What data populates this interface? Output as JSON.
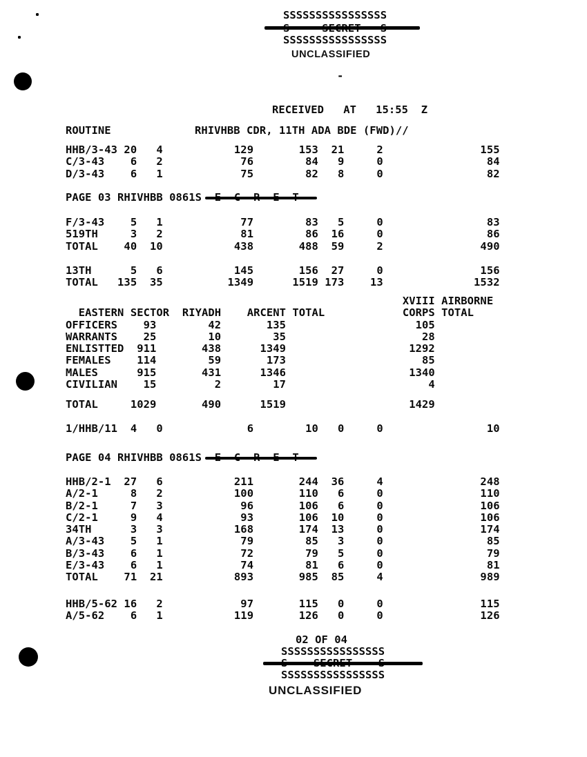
{
  "banner_top": {
    "s_line": "SSSSSSSSSSSSSSSS",
    "secret_line": "S     SECRET   S",
    "s_line2": "SSSSSSSSSSSSSSSS",
    "unclassified": "UNCLASSIFIED",
    "dash": "-"
  },
  "received_line": "RECEIVED   AT   15:55  Z",
  "routine": {
    "label": "ROUTINE",
    "address": "RHIVHBB CDR, 11TH ADA BDE (FWD)//"
  },
  "unit_tables": {
    "block1": [
      {
        "label": "HHB/3-43",
        "values": [
          20,
          4,
          129,
          153,
          21,
          2,
          155
        ]
      },
      {
        "label": "C/3-43",
        "values": [
          6,
          2,
          76,
          84,
          9,
          0,
          84
        ]
      },
      {
        "label": "D/3-43",
        "values": [
          6,
          1,
          75,
          82,
          8,
          0,
          82
        ]
      }
    ],
    "block2": [
      {
        "label": "F/3-43",
        "values": [
          5,
          1,
          77,
          83,
          5,
          0,
          83
        ]
      },
      {
        "label": "519TH",
        "values": [
          3,
          2,
          81,
          86,
          16,
          0,
          86
        ]
      },
      {
        "label": "TOTAL",
        "values": [
          40,
          10,
          438,
          488,
          59,
          2,
          490
        ]
      }
    ],
    "block3": [
      {
        "label": "13TH",
        "values": [
          5,
          6,
          145,
          156,
          27,
          0,
          156
        ]
      },
      {
        "label": "TOTAL",
        "values": [
          135,
          35,
          1349,
          1519,
          173,
          13,
          1532
        ]
      }
    ],
    "block4": [
      {
        "label": "HHB/2-1",
        "values": [
          27,
          6,
          211,
          244,
          36,
          4,
          248
        ]
      },
      {
        "label": "A/2-1",
        "values": [
          8,
          2,
          100,
          110,
          6,
          0,
          110
        ]
      },
      {
        "label": "B/2-1",
        "values": [
          7,
          3,
          96,
          106,
          6,
          0,
          106
        ]
      },
      {
        "label": "C/2-1",
        "values": [
          9,
          4,
          93,
          106,
          10,
          0,
          106
        ]
      },
      {
        "label": "34TH",
        "values": [
          3,
          3,
          168,
          174,
          13,
          0,
          174
        ]
      },
      {
        "label": "A/3-43",
        "values": [
          5,
          1,
          79,
          85,
          3,
          0,
          85
        ]
      },
      {
        "label": "B/3-43",
        "values": [
          6,
          1,
          72,
          79,
          5,
          0,
          79
        ]
      },
      {
        "label": "E/3-43",
        "values": [
          6,
          1,
          74,
          81,
          6,
          0,
          81
        ]
      },
      {
        "label": "TOTAL",
        "values": [
          71,
          21,
          893,
          985,
          85,
          4,
          989
        ]
      }
    ],
    "block5": [
      {
        "label": "HHB/5-62",
        "values": [
          16,
          2,
          97,
          115,
          0,
          0,
          115
        ]
      },
      {
        "label": "A/5-62",
        "values": [
          6,
          1,
          119,
          126,
          0,
          0,
          126
        ]
      }
    ]
  },
  "hhb11_row": {
    "label": "1/HHB/11",
    "values": [
      4,
      0,
      6,
      10,
      0,
      0,
      10
    ]
  },
  "page_markers": [
    {
      "label": "PAGE 03 RHIVHBB 0861",
      "struck": "S  E  C  R  E  T"
    },
    {
      "label": "PAGE 04 RHIVHBB 0861",
      "struck": "S  E  C  R  E  T"
    }
  ],
  "sector_table": {
    "corner_header_line1": "XVIII AIRBORNE",
    "corner_header_line2": "CORPS TOTAL",
    "column_headers": [
      "EASTERN SECTOR",
      "RIYADH",
      "ARCENT TOTAL"
    ],
    "rows": [
      {
        "label": "OFFICERS",
        "values": [
          93,
          42,
          135,
          105
        ]
      },
      {
        "label": "WARRANTS",
        "values": [
          25,
          10,
          35,
          28
        ]
      },
      {
        "label": "ENLISTTED",
        "values": [
          911,
          438,
          1349,
          1292
        ]
      },
      {
        "label": "FEMALES",
        "values": [
          114,
          59,
          173,
          85
        ]
      },
      {
        "label": "MALES",
        "values": [
          915,
          431,
          1346,
          1340
        ]
      },
      {
        "label": "CIVILIAN",
        "values": [
          15,
          2,
          17,
          4
        ]
      }
    ],
    "total_row": {
      "label": "TOTAL",
      "values": [
        1029,
        490,
        1519,
        1429
      ]
    }
  },
  "banner_bottom": {
    "page_count": "02 OF 04",
    "s_line": "SSSSSSSSSSSSSSSS",
    "secret_line": "S    SECRET    S",
    "s_line2": "SSSSSSSSSSSSSSSS",
    "unclassified": "UNCLASSIFIED"
  }
}
